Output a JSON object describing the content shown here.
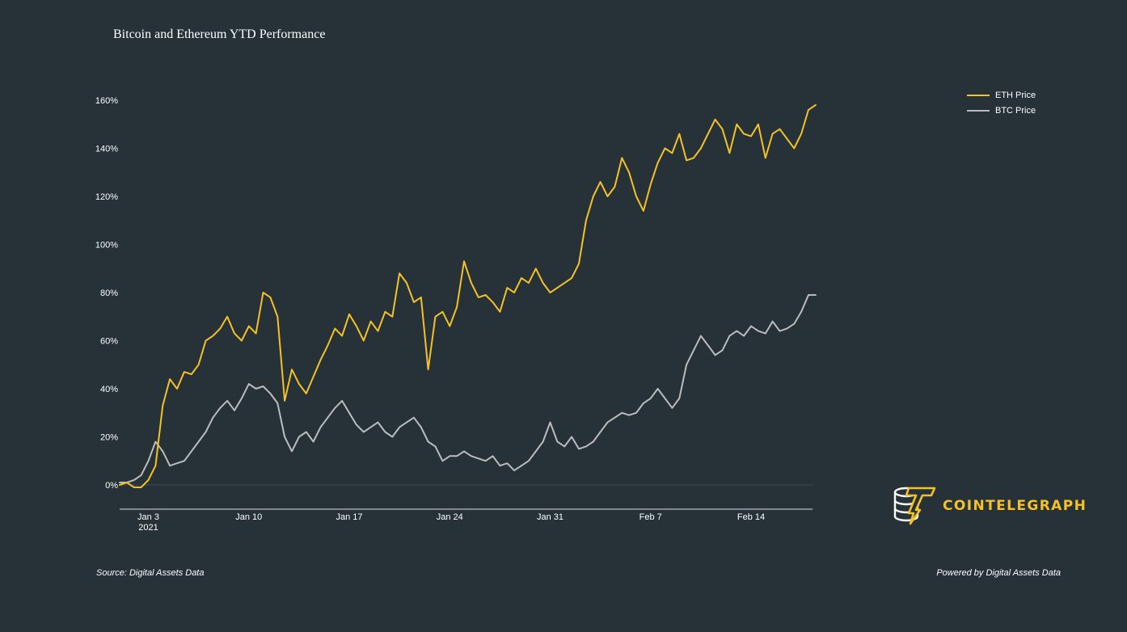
{
  "chart_data": {
    "type": "line",
    "title": "Bitcoin and Ethereum YTD Performance",
    "xlabel": "",
    "ylabel": "",
    "x_ticks": [
      "Jan 3",
      "Jan 10",
      "Jan 17",
      "Jan 24",
      "Jan 31",
      "Feb 7",
      "Feb 14"
    ],
    "x_tick_sublabel": "2021",
    "y_ticks": [
      "0%",
      "20%",
      "40%",
      "60%",
      "80%",
      "100%",
      "120%",
      "140%",
      "160%"
    ],
    "ylim": [
      -10,
      170
    ],
    "xlim_days": [
      0,
      48.5
    ],
    "grid": false,
    "legend_position": "top-right",
    "series": [
      {
        "name": "ETH Price",
        "color": "#f5c226",
        "days": [
          0,
          0.5,
          1,
          1.5,
          2,
          2.5,
          3,
          3.5,
          4,
          4.5,
          5,
          5.5,
          6,
          6.5,
          7,
          7.5,
          8,
          8.5,
          9,
          9.5,
          10,
          10.5,
          11,
          11.5,
          12,
          12.5,
          13,
          13.5,
          14,
          14.5,
          15,
          15.5,
          16,
          16.5,
          17,
          17.5,
          18,
          18.5,
          19,
          19.5,
          20,
          20.5,
          21,
          21.5,
          22,
          22.5,
          23,
          23.5,
          24,
          24.5,
          25,
          25.5,
          26,
          26.5,
          27,
          27.5,
          28,
          28.5,
          29,
          29.5,
          30,
          30.5,
          31,
          31.5,
          32,
          32.5,
          33,
          33.5,
          34,
          34.5,
          35,
          35.5,
          36,
          36.5,
          37,
          37.5,
          38,
          38.5,
          39,
          39.5,
          40,
          40.5,
          41,
          41.5,
          42,
          42.5,
          43,
          43.5,
          44,
          44.5,
          45,
          45.5,
          46,
          46.5,
          47,
          47.5,
          48,
          48.5
        ],
        "values": [
          0,
          1,
          -1,
          -1,
          2,
          8,
          33,
          44,
          40,
          47,
          46,
          50,
          60,
          62,
          65,
          70,
          63,
          60,
          66,
          63,
          80,
          78,
          70,
          35,
          48,
          42,
          38,
          45,
          52,
          58,
          65,
          62,
          71,
          66,
          60,
          68,
          64,
          72,
          70,
          88,
          84,
          76,
          78,
          48,
          70,
          72,
          66,
          74,
          93,
          84,
          78,
          79,
          76,
          72,
          82,
          80,
          86,
          84,
          90,
          84,
          80,
          82,
          84,
          86,
          92,
          110,
          120,
          126,
          120,
          124,
          136,
          130,
          120,
          114,
          125,
          134,
          140,
          138,
          146,
          135,
          136,
          140,
          146,
          152,
          148,
          138,
          150,
          146,
          145,
          150,
          136,
          146,
          148,
          144,
          140,
          146,
          156,
          158
        ]
      },
      {
        "name": "BTC Price",
        "color": "#bcbcbc",
        "days": [
          0,
          0.5,
          1,
          1.5,
          2,
          2.5,
          3,
          3.5,
          4,
          4.5,
          5,
          5.5,
          6,
          6.5,
          7,
          7.5,
          8,
          8.5,
          9,
          9.5,
          10,
          10.5,
          11,
          11.5,
          12,
          12.5,
          13,
          13.5,
          14,
          14.5,
          15,
          15.5,
          16,
          16.5,
          17,
          17.5,
          18,
          18.5,
          19,
          19.5,
          20,
          20.5,
          21,
          21.5,
          22,
          22.5,
          23,
          23.5,
          24,
          24.5,
          25,
          25.5,
          26,
          26.5,
          27,
          27.5,
          28,
          28.5,
          29,
          29.5,
          30,
          30.5,
          31,
          31.5,
          32,
          32.5,
          33,
          33.5,
          34,
          34.5,
          35,
          35.5,
          36,
          36.5,
          37,
          37.5,
          38,
          38.5,
          39,
          39.5,
          40,
          40.5,
          41,
          41.5,
          42,
          42.5,
          43,
          43.5,
          44,
          44.5,
          45,
          45.5,
          46,
          46.5,
          47,
          47.5,
          48,
          48.5
        ],
        "values": [
          1,
          1,
          2,
          4,
          10,
          18,
          14,
          8,
          9,
          10,
          14,
          18,
          22,
          28,
          32,
          35,
          31,
          36,
          42,
          40,
          41,
          38,
          34,
          20,
          14,
          20,
          22,
          18,
          24,
          28,
          32,
          35,
          30,
          25,
          22,
          24,
          26,
          22,
          20,
          24,
          26,
          28,
          24,
          18,
          16,
          10,
          12,
          12,
          14,
          12,
          11,
          10,
          12,
          8,
          9,
          6,
          8,
          10,
          14,
          18,
          26,
          18,
          16,
          20,
          15,
          16,
          18,
          22,
          26,
          28,
          30,
          29,
          30,
          34,
          36,
          40,
          36,
          32,
          36,
          50,
          56,
          62,
          58,
          54,
          56,
          62,
          64,
          62,
          66,
          64,
          63,
          68,
          64,
          65,
          67,
          72,
          79,
          79
        ]
      }
    ]
  },
  "footer": {
    "source": "Source: Digital Assets Data",
    "powered": "Powered by Digital Assets Data"
  },
  "brand": {
    "name": "COINTELEGRAPH",
    "accent": "#f5c226"
  }
}
